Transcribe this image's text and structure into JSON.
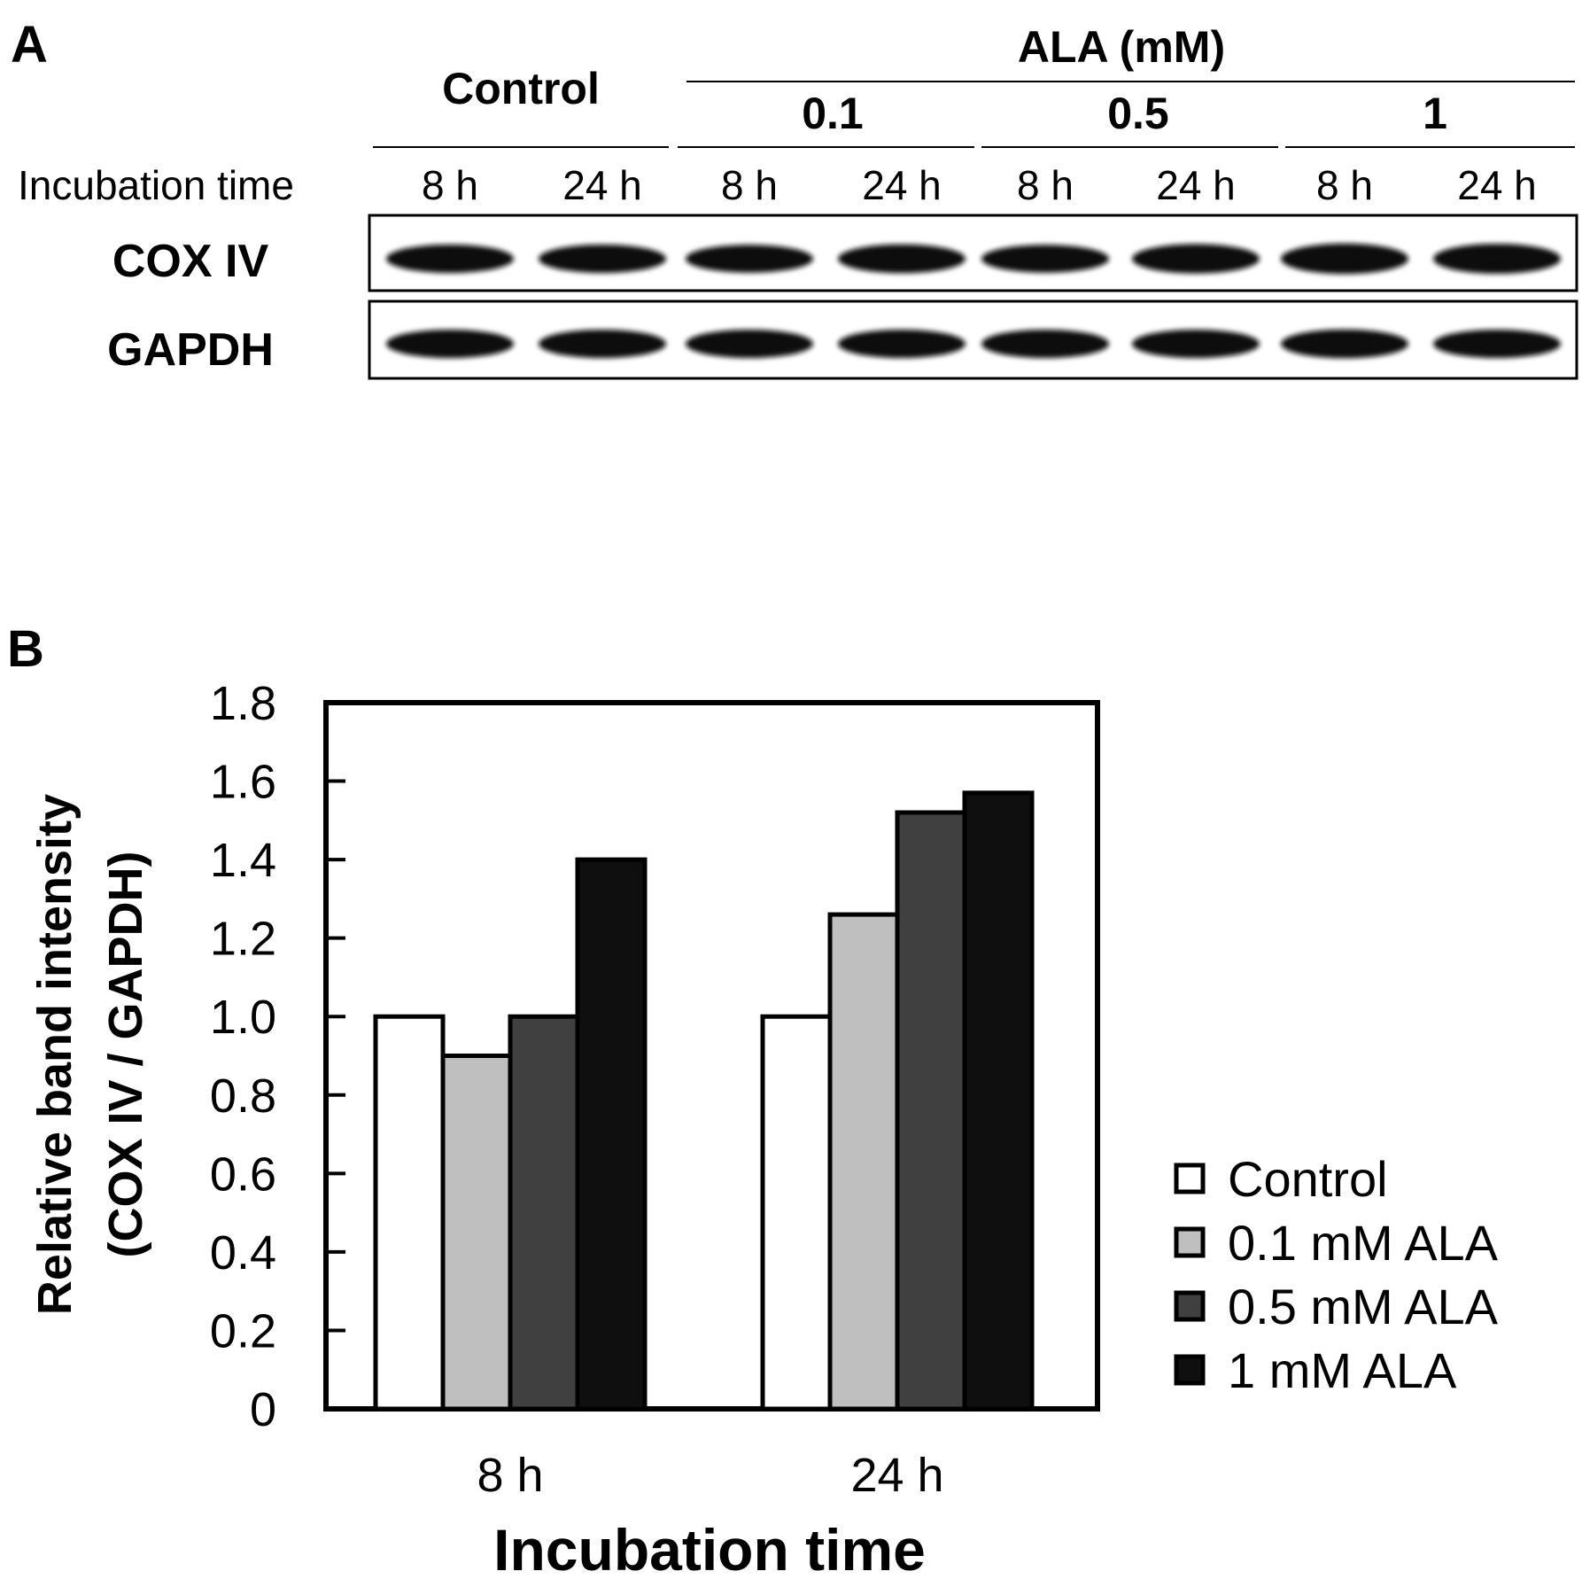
{
  "panel_a": {
    "label": "A",
    "group_header": "ALA  (mM)",
    "control_label": "Control",
    "concentrations": [
      "0.1",
      "0.5",
      "1"
    ],
    "row_label": "Incubation time",
    "times": [
      "8 h",
      "24 h",
      "8 h",
      "24 h",
      "8 h",
      "24 h",
      "8 h",
      "24 h"
    ],
    "blots": [
      {
        "name": "COX IV",
        "band_intensity": [
          1.0,
          1.0,
          0.95,
          1.05,
          0.95,
          1.1,
          1.2,
          1.15
        ]
      },
      {
        "name": "GAPDH",
        "band_intensity": [
          1.0,
          1.0,
          1.0,
          1.0,
          1.0,
          1.0,
          1.05,
          1.0
        ]
      }
    ]
  },
  "panel_b": {
    "label": "B"
  },
  "chart_data": {
    "type": "bar",
    "categories": [
      "8 h",
      "24 h"
    ],
    "series": [
      {
        "name": "Control",
        "values": [
          1.0,
          1.0
        ],
        "color": "#ffffff"
      },
      {
        "name": "0.1 mM ALA",
        "values": [
          0.9,
          1.26
        ],
        "color": "#bfbfbf"
      },
      {
        "name": "0.5 mM ALA",
        "values": [
          1.0,
          1.52
        ],
        "color": "#404040"
      },
      {
        "name": "1 mM ALA",
        "values": [
          1.4,
          1.57
        ],
        "color": "#0f0f0f"
      }
    ],
    "title": "",
    "xlabel": "Incubation time",
    "ylabel": [
      "Relative band intensity",
      "(COX IV / GAPDH)"
    ],
    "ylim": [
      0,
      1.8
    ],
    "yticks": [
      "0",
      "0.2",
      "0.4",
      "0.6",
      "0.8",
      "1.0",
      "1.2",
      "1.4",
      "1.6",
      "1.8"
    ],
    "grid": false,
    "legend": "right"
  }
}
